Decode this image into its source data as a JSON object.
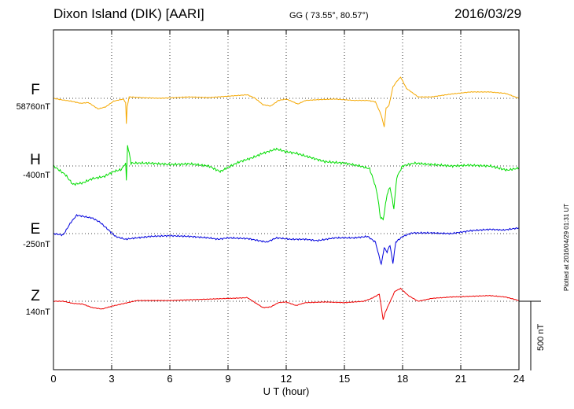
{
  "header": {
    "station": "Dixon Island (DIK)  [AARI]",
    "coords": "GG ( 73.55°,  80.57°)",
    "date": "2016/03/29"
  },
  "footnote": "Plotted at 2016/04/29 01:31  UT",
  "chart_data": {
    "type": "line",
    "xlabel": "U T (hour)",
    "xlim": [
      0,
      24
    ],
    "xticks": [
      0,
      3,
      6,
      9,
      12,
      15,
      18,
      21,
      24
    ],
    "scale_bar": {
      "label": "500 nT",
      "value_nT": 500
    },
    "series": [
      {
        "name": "F",
        "baseline": "58760nT",
        "color": "#f5a800",
        "points": [
          [
            0,
            0
          ],
          [
            0.4,
            -10
          ],
          [
            0.9,
            -20
          ],
          [
            1.4,
            -35
          ],
          [
            1.8,
            -30
          ],
          [
            2.3,
            -75
          ],
          [
            2.7,
            -60
          ],
          [
            3.1,
            -20
          ],
          [
            3.6,
            -5
          ],
          [
            3.72,
            -30
          ],
          [
            3.76,
            -180
          ],
          [
            3.8,
            -60
          ],
          [
            3.9,
            10
          ],
          [
            4.5,
            5
          ],
          [
            5.5,
            0
          ],
          [
            7,
            10
          ],
          [
            8,
            5
          ],
          [
            9,
            15
          ],
          [
            10,
            25
          ],
          [
            10.4,
            0
          ],
          [
            10.8,
            -45
          ],
          [
            11.2,
            -55
          ],
          [
            11.6,
            -15
          ],
          [
            12,
            -5
          ],
          [
            12.6,
            -40
          ],
          [
            13,
            -15
          ],
          [
            13.6,
            -10
          ],
          [
            14.5,
            -5
          ],
          [
            15.5,
            -15
          ],
          [
            16.2,
            -15
          ],
          [
            16.6,
            -25
          ],
          [
            16.9,
            -120
          ],
          [
            17.05,
            -200
          ],
          [
            17.15,
            -70
          ],
          [
            17.3,
            -50
          ],
          [
            17.5,
            80
          ],
          [
            17.7,
            120
          ],
          [
            17.9,
            150
          ],
          [
            18.2,
            70
          ],
          [
            18.8,
            10
          ],
          [
            19.5,
            10
          ],
          [
            20.5,
            30
          ],
          [
            21.5,
            45
          ],
          [
            22.5,
            45
          ],
          [
            23.3,
            35
          ],
          [
            24,
            0
          ]
        ]
      },
      {
        "name": "H",
        "baseline": "-400nT",
        "color": "#00dd00",
        "points": [
          [
            0,
            0
          ],
          [
            0.6,
            -60
          ],
          [
            1,
            -130
          ],
          [
            1.5,
            -120
          ],
          [
            2,
            -90
          ],
          [
            2.6,
            -75
          ],
          [
            3.1,
            -40
          ],
          [
            3.5,
            -25
          ],
          [
            3.72,
            20
          ],
          [
            3.76,
            -110
          ],
          [
            3.82,
            150
          ],
          [
            4,
            20
          ],
          [
            5,
            20
          ],
          [
            6,
            10
          ],
          [
            7,
            15
          ],
          [
            8,
            0
          ],
          [
            8.6,
            -40
          ],
          [
            9,
            -10
          ],
          [
            9.6,
            30
          ],
          [
            10.3,
            60
          ],
          [
            10.8,
            90
          ],
          [
            11.5,
            120
          ],
          [
            12,
            100
          ],
          [
            12.5,
            90
          ],
          [
            13,
            70
          ],
          [
            14,
            30
          ],
          [
            15,
            20
          ],
          [
            15.8,
            0
          ],
          [
            16.3,
            -20
          ],
          [
            16.55,
            -120
          ],
          [
            16.7,
            -200
          ],
          [
            16.85,
            -360
          ],
          [
            17,
            -380
          ],
          [
            17.2,
            -200
          ],
          [
            17.35,
            -150
          ],
          [
            17.55,
            -300
          ],
          [
            17.7,
            -80
          ],
          [
            18,
            0
          ],
          [
            18.6,
            20
          ],
          [
            19.5,
            10
          ],
          [
            20.5,
            0
          ],
          [
            21.5,
            5
          ],
          [
            22.5,
            0
          ],
          [
            23.4,
            -30
          ],
          [
            24,
            -15
          ]
        ]
      },
      {
        "name": "E",
        "baseline": "-250nT",
        "color": "#0000dd",
        "points": [
          [
            0,
            0
          ],
          [
            0.5,
            -10
          ],
          [
            0.9,
            80
          ],
          [
            1.2,
            130
          ],
          [
            1.6,
            120
          ],
          [
            2,
            110
          ],
          [
            2.4,
            80
          ],
          [
            2.8,
            30
          ],
          [
            3.2,
            -20
          ],
          [
            3.7,
            -40
          ],
          [
            4.3,
            -30
          ],
          [
            5,
            -20
          ],
          [
            6,
            -15
          ],
          [
            7,
            -20
          ],
          [
            8,
            -30
          ],
          [
            8.5,
            -40
          ],
          [
            9,
            -30
          ],
          [
            10,
            -35
          ],
          [
            10.6,
            -50
          ],
          [
            11,
            -60
          ],
          [
            11.5,
            -30
          ],
          [
            12.2,
            -40
          ],
          [
            13,
            -40
          ],
          [
            13.6,
            -50
          ],
          [
            14.5,
            -30
          ],
          [
            15.5,
            -30
          ],
          [
            16.2,
            -20
          ],
          [
            16.6,
            -60
          ],
          [
            16.9,
            -220
          ],
          [
            17.05,
            -100
          ],
          [
            17.2,
            -130
          ],
          [
            17.35,
            -80
          ],
          [
            17.5,
            -210
          ],
          [
            17.65,
            -60
          ],
          [
            18,
            -20
          ],
          [
            18.5,
            5
          ],
          [
            19.5,
            5
          ],
          [
            20.5,
            0
          ],
          [
            21.5,
            20
          ],
          [
            22.5,
            30
          ],
          [
            23.2,
            25
          ],
          [
            24,
            40
          ]
        ]
      },
      {
        "name": "Z",
        "baseline": "140nT",
        "color": "#ee0000",
        "points": [
          [
            0,
            0
          ],
          [
            0.5,
            0
          ],
          [
            1,
            -15
          ],
          [
            1.5,
            -20
          ],
          [
            2,
            -45
          ],
          [
            2.5,
            -55
          ],
          [
            3,
            -35
          ],
          [
            3.5,
            -20
          ],
          [
            4.3,
            5
          ],
          [
            5,
            5
          ],
          [
            6,
            5
          ],
          [
            7,
            10
          ],
          [
            8,
            15
          ],
          [
            9,
            20
          ],
          [
            10,
            25
          ],
          [
            10.4,
            -10
          ],
          [
            10.8,
            -45
          ],
          [
            11.2,
            -40
          ],
          [
            11.6,
            -10
          ],
          [
            12,
            -5
          ],
          [
            12.5,
            -30
          ],
          [
            13,
            -10
          ],
          [
            14,
            -5
          ],
          [
            15,
            -10
          ],
          [
            16,
            0
          ],
          [
            16.4,
            20
          ],
          [
            16.8,
            50
          ],
          [
            17,
            -130
          ],
          [
            17.1,
            -80
          ],
          [
            17.3,
            -20
          ],
          [
            17.6,
            70
          ],
          [
            17.9,
            90
          ],
          [
            18.3,
            40
          ],
          [
            18.8,
            0
          ],
          [
            19.5,
            20
          ],
          [
            20.5,
            30
          ],
          [
            21.5,
            35
          ],
          [
            22.5,
            40
          ],
          [
            23.3,
            30
          ],
          [
            24,
            5
          ]
        ]
      }
    ]
  }
}
